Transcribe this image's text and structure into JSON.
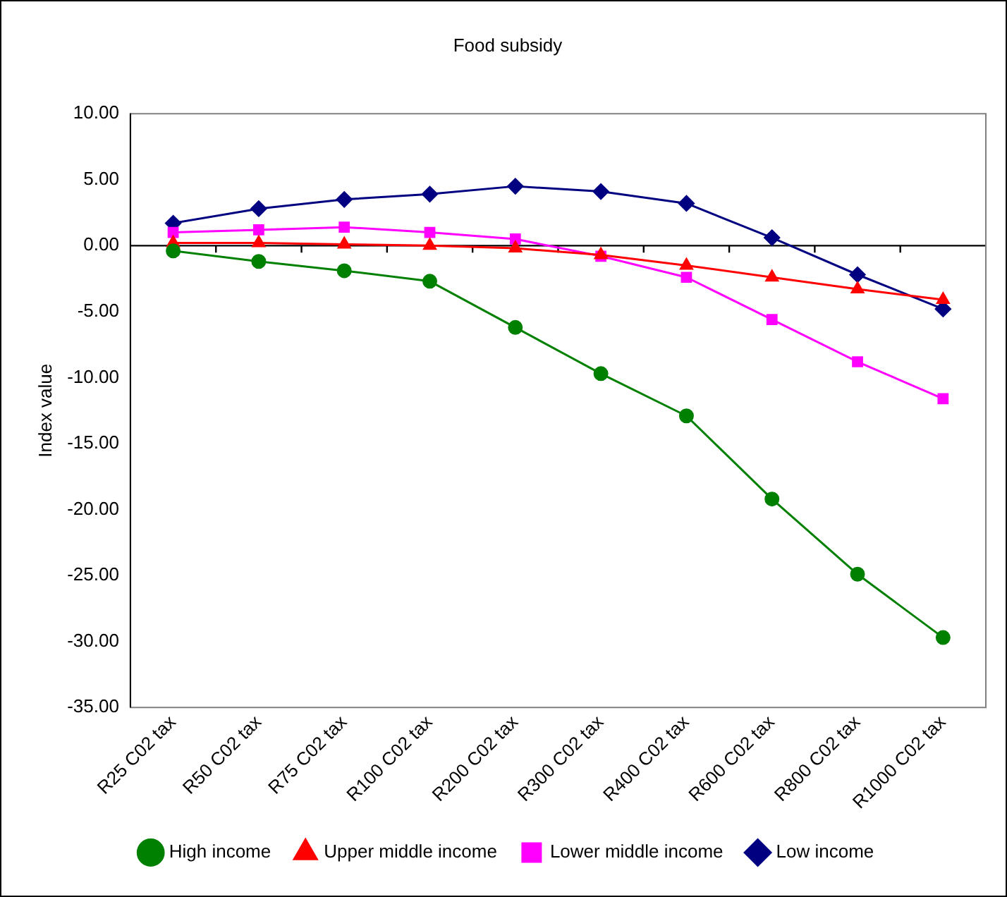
{
  "chart_data": {
    "type": "line",
    "title": "Food subsidy",
    "ylabel": "Index value",
    "categories": [
      "R25 C02 tax",
      "R50 C02 tax",
      "R75 C02 tax",
      "R100 C02 tax",
      "R200 C02 tax",
      "R300 C02 tax",
      "R400 C02 tax",
      "R600 C02 tax",
      "R800 C02 tax",
      "R1000 C02 tax"
    ],
    "series": [
      {
        "name": "Low income",
        "color": "#000080",
        "marker": "diamond",
        "values": [
          1.7,
          2.8,
          3.5,
          3.9,
          4.5,
          4.1,
          3.2,
          0.6,
          -2.2,
          -4.8
        ]
      },
      {
        "name": "Lower middle income",
        "color": "#ff00ff",
        "marker": "square",
        "values": [
          1.0,
          1.2,
          1.4,
          1.0,
          0.5,
          -0.8,
          -2.4,
          -5.6,
          -8.8,
          -11.6
        ]
      },
      {
        "name": "Upper middle income",
        "color": "#ff0000",
        "marker": "triangle",
        "values": [
          0.2,
          0.2,
          0.1,
          0.0,
          -0.2,
          -0.7,
          -1.5,
          -2.4,
          -3.3,
          -4.1
        ]
      },
      {
        "name": "High income",
        "color": "#008000",
        "marker": "circle",
        "values": [
          -0.4,
          -1.2,
          -1.9,
          -2.7,
          -6.2,
          -9.7,
          -12.9,
          -19.2,
          -24.9,
          -29.7
        ]
      }
    ],
    "ylim": [
      -35,
      10
    ],
    "yticks": [
      {
        "value": 10,
        "label": "10.00"
      },
      {
        "value": 5,
        "label": "5.00"
      },
      {
        "value": 0,
        "label": "0.00"
      },
      {
        "value": -5,
        "label": "-5.00"
      },
      {
        "value": -10,
        "label": "-10.00"
      },
      {
        "value": -15,
        "label": "-15.00"
      },
      {
        "value": -20,
        "label": "-20.00"
      },
      {
        "value": -25,
        "label": "-25.00"
      },
      {
        "value": -30,
        "label": "-30.00"
      },
      {
        "value": -35,
        "label": "-35.00"
      }
    ],
    "ref_lines": [
      {
        "axis": "y",
        "value": 0,
        "color": "#000000"
      }
    ],
    "grid": false,
    "legend": "bottom",
    "line_style": "solid"
  }
}
